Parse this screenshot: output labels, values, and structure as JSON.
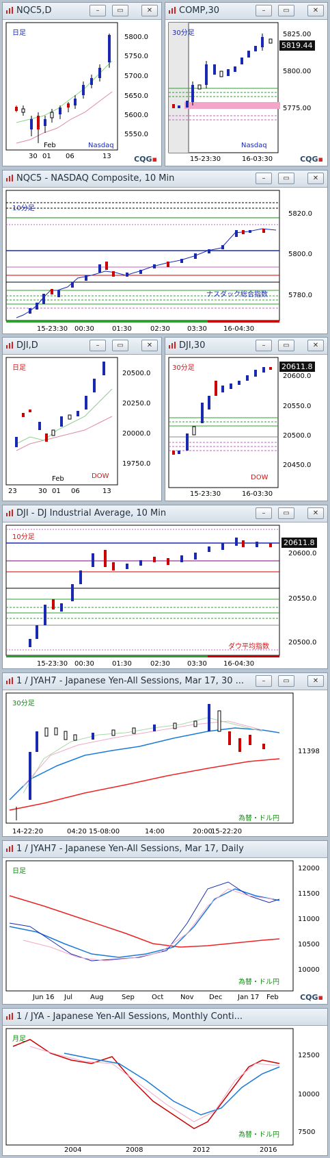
{
  "windows": [
    {
      "id": "w1",
      "title": "NQC5,D",
      "period": "日足",
      "period_color": "#1a2ab0",
      "name": "Nasdaq",
      "name_color": "#1a2ab0",
      "y_ticks": [
        "5800.0",
        "5750.0",
        "5700.0",
        "5650.0",
        "5600.0",
        "5550.0"
      ],
      "x_ticks": [
        "30",
        "01",
        "Feb",
        "06",
        "13"
      ],
      "logo": "CQG"
    },
    {
      "id": "w2",
      "title": "COMP,30",
      "period": "30分足",
      "period_color": "#1a2ab0",
      "name": "Nasdaq",
      "name_color": "#1a2ab0",
      "y_ticks": [
        "5825.00",
        "5800.00",
        "5775.00"
      ],
      "price": "5819.44",
      "x_ticks": [
        "15-23:30",
        "16-03:30"
      ],
      "logo": "CQG"
    },
    {
      "id": "w3",
      "title": "NQC5 - NASDAQ Composite, 10 Min",
      "period": "10分足",
      "period_color": "#1a2ab0",
      "name": "ナスダック総合指数",
      "name_color": "#1a2ab0",
      "y_ticks": [
        "5820.0",
        "5800.0",
        "5780.0"
      ],
      "x_ticks": [
        "15-23:30",
        "00:30",
        "01:30",
        "02:30",
        "03:30",
        "16-04:30"
      ]
    },
    {
      "id": "w4",
      "title": "DJI,D",
      "period": "日足",
      "period_color": "#d01818",
      "name": "DOW",
      "name_color": "#d01818",
      "y_ticks": [
        "20500.0",
        "20250.0",
        "20000.0",
        "19750.0"
      ],
      "x_ticks": [
        "23",
        "30",
        "01",
        "Feb",
        "06",
        "13"
      ]
    },
    {
      "id": "w5",
      "title": "DJI,30",
      "period": "30分足",
      "period_color": "#d01818",
      "name": "DOW",
      "name_color": "#d01818",
      "y_ticks": [
        "20600.0",
        "20550.0",
        "20500.0",
        "20450.0"
      ],
      "price": "20611.8",
      "x_ticks": [
        "15-23:30",
        "16-03:30"
      ]
    },
    {
      "id": "w6",
      "title": "DJI - DJ Industrial Average, 10 Min",
      "period": "10分足",
      "period_color": "#d01818",
      "name": "ダウ平均指数",
      "name_color": "#d01818",
      "y_ticks": [
        "20600.0",
        "20550.0",
        "20500.0"
      ],
      "price": "20611.8",
      "x_ticks": [
        "15-23:30",
        "00:30",
        "01:30",
        "02:30",
        "03:30",
        "16-04:30"
      ]
    },
    {
      "id": "w7",
      "title": "1 / JYAH7 - Japanese Yen-All Sessions, Mar 17, 30 ...",
      "period": "30分足",
      "period_color": "#138a13",
      "name": "為替・ドル円",
      "name_color": "#138a13",
      "y_ticks": [],
      "price": "11398",
      "x_ticks": [
        "14-22:20",
        "04:20",
        "15-08:00",
        "14:00",
        "20:00",
        "15-22:20"
      ]
    },
    {
      "id": "w8",
      "title": "1 / JYAH7 - Japanese Yen-All Sessions, Mar 17, Daily",
      "period": "日足",
      "period_color": "#138a13",
      "name": "為替・ドル円",
      "name_color": "#138a13",
      "y_ticks": [
        "12000",
        "11500",
        "11000",
        "10500",
        "10000"
      ],
      "x_ticks": [
        "Jun 16",
        "Jul",
        "Aug",
        "Sep",
        "Oct",
        "Nov",
        "Dec",
        "Jan 17",
        "Feb"
      ]
    },
    {
      "id": "w9",
      "title": "1 / JYA - Japanese Yen-All Sessions, Monthly Conti...",
      "period": "月足",
      "period_color": "#138a13",
      "name": "為替・ドル円",
      "name_color": "#138a13",
      "y_ticks": [
        "12500",
        "10000",
        "7500"
      ],
      "x_ticks": [
        "2004",
        "2008",
        "2012",
        "2016"
      ]
    }
  ],
  "buttons": {
    "minimize": "–",
    "restore": "▭",
    "close": "✕"
  },
  "logo": "CQG"
}
